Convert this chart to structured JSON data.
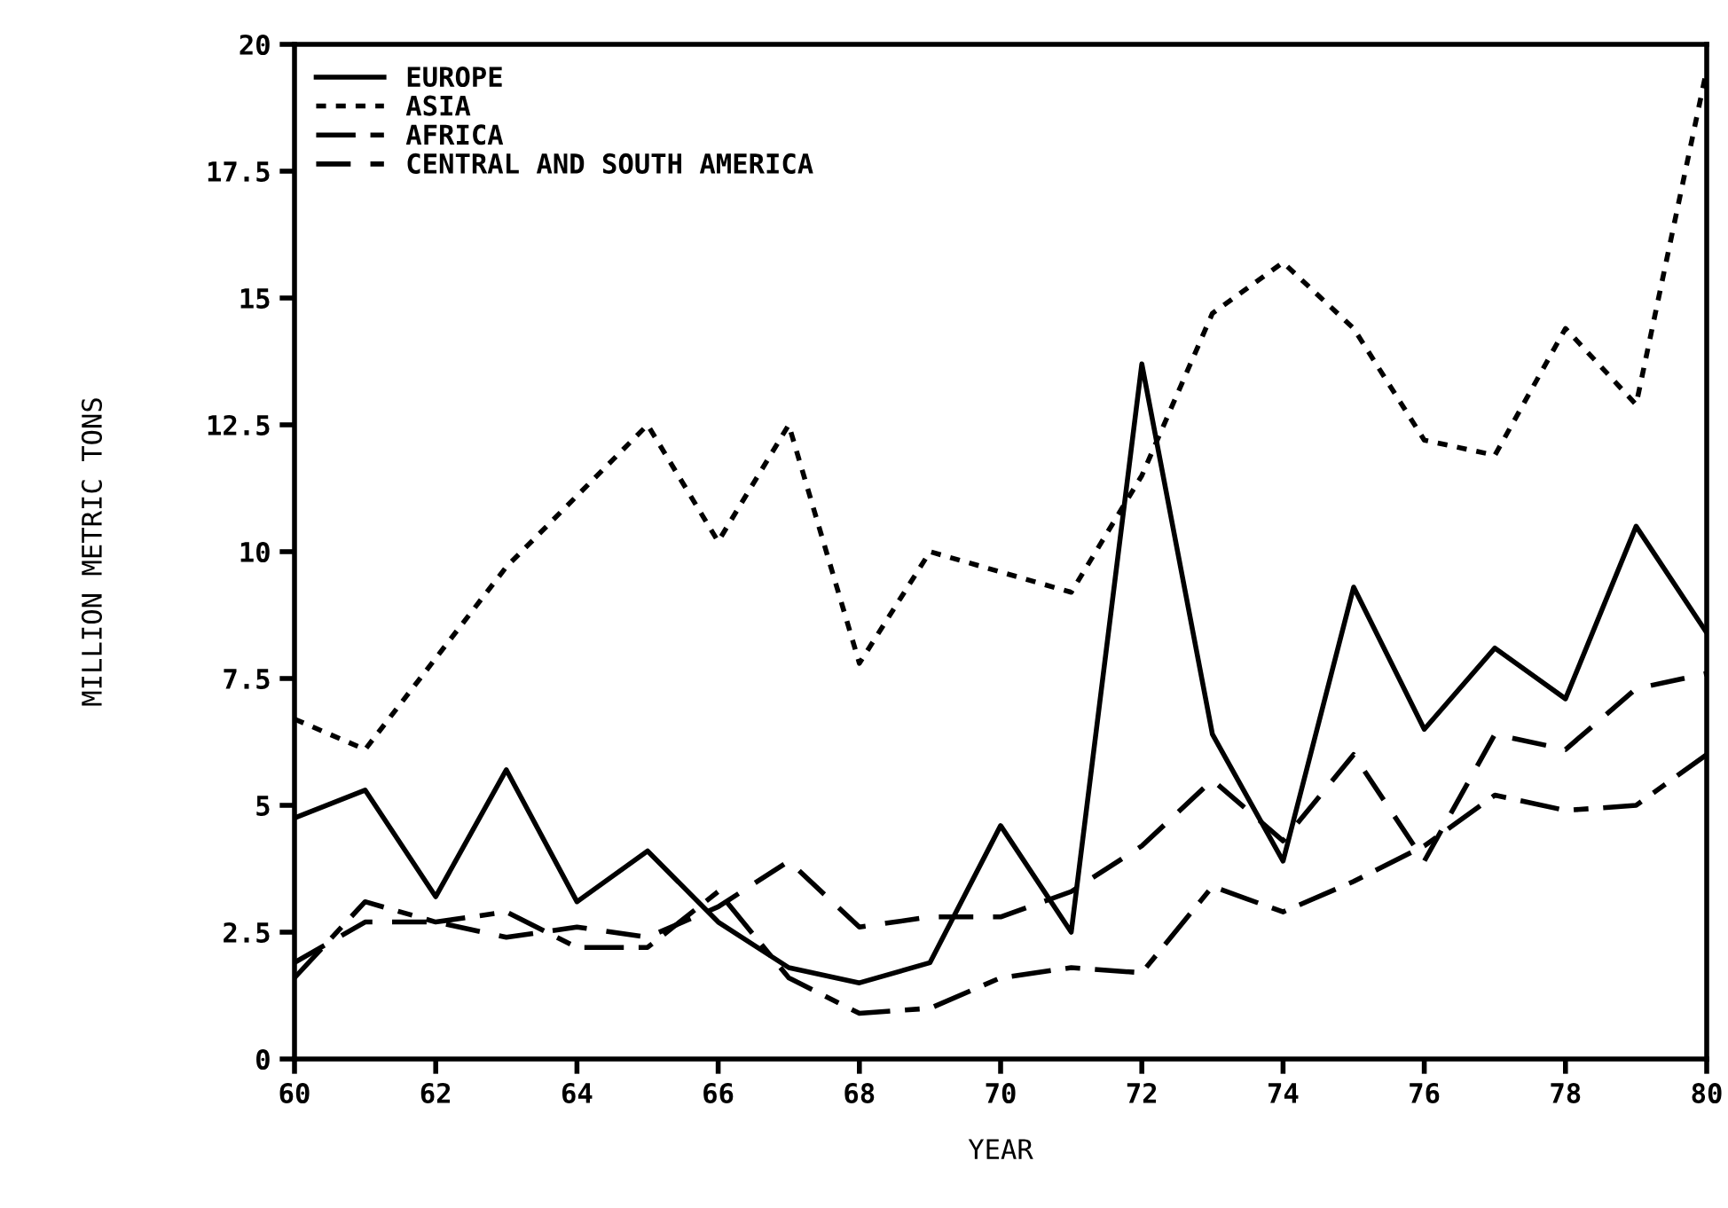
{
  "chart_data": {
    "type": "line",
    "xlabel": "YEAR",
    "ylabel": "MILLION METRIC TONS",
    "x": [
      60,
      61,
      62,
      63,
      64,
      65,
      66,
      67,
      68,
      69,
      70,
      71,
      72,
      73,
      74,
      75,
      76,
      77,
      78,
      79,
      80
    ],
    "series": [
      {
        "name": "EUROPE",
        "color": "#000000",
        "line_style": "solid",
        "values": [
          4.75,
          5.3,
          3.2,
          5.7,
          3.1,
          4.1,
          2.7,
          1.8,
          1.5,
          1.9,
          4.6,
          2.5,
          13.7,
          6.4,
          3.9,
          9.3,
          6.5,
          8.1,
          7.1,
          10.5,
          8.4
        ]
      },
      {
        "name": "ASIA",
        "color": "#000000",
        "line_style": "dotted",
        "values": [
          6.7,
          6.1,
          7.9,
          9.7,
          11.1,
          12.5,
          10.2,
          12.5,
          7.8,
          10.0,
          9.6,
          9.2,
          11.5,
          14.7,
          15.7,
          14.4,
          12.2,
          11.9,
          14.4,
          12.9,
          19.5
        ]
      },
      {
        "name": "AFRICA",
        "color": "#000000",
        "line_style": "dashdot",
        "values": [
          1.6,
          3.1,
          2.7,
          2.9,
          2.2,
          2.2,
          3.3,
          1.6,
          0.9,
          1.0,
          1.6,
          1.8,
          1.7,
          3.4,
          2.9,
          3.5,
          4.2,
          5.2,
          4.9,
          5.0,
          6.0
        ]
      },
      {
        "name": "CENTRAL AND SOUTH AMERICA",
        "color": "#000000",
        "line_style": "dashed",
        "values": [
          1.9,
          2.7,
          2.7,
          2.4,
          2.6,
          2.4,
          3.0,
          3.9,
          2.6,
          2.8,
          2.8,
          3.3,
          4.2,
          5.5,
          4.3,
          6.0,
          3.9,
          6.4,
          6.1,
          7.3,
          7.6
        ]
      }
    ],
    "xlim": [
      60,
      80
    ],
    "xticks": [
      60,
      62,
      64,
      66,
      68,
      70,
      72,
      74,
      76,
      78,
      80
    ],
    "ylim": [
      0,
      20
    ],
    "yticks": [
      0,
      2.5,
      5,
      7.5,
      10,
      12.5,
      15,
      17.5,
      20
    ],
    "grid": false,
    "legend": "top left",
    "marker": "none"
  }
}
